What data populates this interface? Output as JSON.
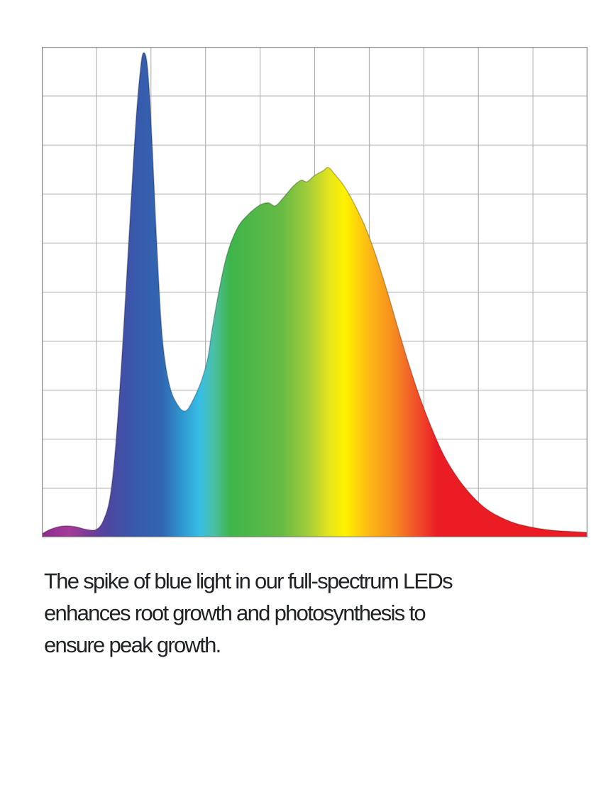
{
  "page": {
    "background": "#ffffff"
  },
  "colors": {
    "chart_background": "#ffffff",
    "chart_border": "#8B8B8B",
    "grid_line": "#A9A9A9",
    "caption_text": "#1F2125",
    "edge_shading": "rgba(0,0,0,0.25)"
  },
  "caption": {
    "lines": [
      "The spike of blue light in our full-spectrum LEDs",
      "enhances root growth and photosynthesis to",
      "ensure peak growth."
    ]
  },
  "chart_data": {
    "type": "area",
    "title": "",
    "xlabel": "",
    "ylabel": "",
    "x_axis": {
      "tick_labels": [],
      "range_percent": [
        0,
        100
      ]
    },
    "y_axis": {
      "tick_labels": [],
      "range_percent": [
        0,
        100
      ]
    },
    "grid": {
      "cols": 10,
      "rows": 10,
      "visible": true
    },
    "legend": {
      "visible": false
    },
    "features": {
      "blue_spike_peak": {
        "x_percent": 18.7,
        "intensity_percent": 98.8
      },
      "valley": {
        "x_percent": 26.4,
        "intensity_percent": 25.8
      },
      "broad_peak": {
        "x_percent": 52.5,
        "intensity_percent": 75.4
      },
      "left_tail_bump": {
        "x_percent": 3.8,
        "intensity_percent": 2.3
      }
    },
    "series": [
      {
        "name": "full-spectrum-led-output",
        "points": [
          [
            0.0,
            0.7
          ],
          [
            1.7,
            1.7
          ],
          [
            3.8,
            2.3
          ],
          [
            6.0,
            2.2
          ],
          [
            8.2,
            1.6
          ],
          [
            10.0,
            1.6
          ],
          [
            11.3,
            3.5
          ],
          [
            12.5,
            8.2
          ],
          [
            13.5,
            18.4
          ],
          [
            14.7,
            37.2
          ],
          [
            16.0,
            61.8
          ],
          [
            17.2,
            84.2
          ],
          [
            18.1,
            95.8
          ],
          [
            18.7,
            98.8
          ],
          [
            19.4,
            95.4
          ],
          [
            20.2,
            80.6
          ],
          [
            21.1,
            58.9
          ],
          [
            22.1,
            40.5
          ],
          [
            23.4,
            31.0
          ],
          [
            25.0,
            26.8
          ],
          [
            26.4,
            25.8
          ],
          [
            27.8,
            28.2
          ],
          [
            29.3,
            32.1
          ],
          [
            30.4,
            36.5
          ],
          [
            31.2,
            42.3
          ],
          [
            32.4,
            49.9
          ],
          [
            33.9,
            57.5
          ],
          [
            35.8,
            63.0
          ],
          [
            37.8,
            65.8
          ],
          [
            39.9,
            67.7
          ],
          [
            41.5,
            68.2
          ],
          [
            42.8,
            67.6
          ],
          [
            44.3,
            69.3
          ],
          [
            46.0,
            71.5
          ],
          [
            47.5,
            72.8
          ],
          [
            48.6,
            72.5
          ],
          [
            49.9,
            73.7
          ],
          [
            51.5,
            74.7
          ],
          [
            52.5,
            75.4
          ],
          [
            53.7,
            74.0
          ],
          [
            55.4,
            71.6
          ],
          [
            57.3,
            67.9
          ],
          [
            59.3,
            63.2
          ],
          [
            61.2,
            57.5
          ],
          [
            63.2,
            50.5
          ],
          [
            65.1,
            43.3
          ],
          [
            67.2,
            35.5
          ],
          [
            69.3,
            28.5
          ],
          [
            71.4,
            22.4
          ],
          [
            73.6,
            16.9
          ],
          [
            75.9,
            12.6
          ],
          [
            78.4,
            9.0
          ],
          [
            81.0,
            6.2
          ],
          [
            83.7,
            4.3
          ],
          [
            86.7,
            2.9
          ],
          [
            90.1,
            2.0
          ],
          [
            93.8,
            1.4
          ],
          [
            97.0,
            1.2
          ],
          [
            100.0,
            1.0
          ]
        ]
      }
    ],
    "gradient_stops": [
      {
        "offset": 0.0,
        "color": "#8E2A8C"
      },
      {
        "offset": 0.05,
        "color": "#A43C99"
      },
      {
        "offset": 0.085,
        "color": "#7A3B97"
      },
      {
        "offset": 0.12,
        "color": "#4E46A0"
      },
      {
        "offset": 0.165,
        "color": "#3A57AB"
      },
      {
        "offset": 0.22,
        "color": "#3066B2"
      },
      {
        "offset": 0.26,
        "color": "#2F9BD3"
      },
      {
        "offset": 0.29,
        "color": "#38BEE6"
      },
      {
        "offset": 0.315,
        "color": "#4BC0A6"
      },
      {
        "offset": 0.345,
        "color": "#3EB54A"
      },
      {
        "offset": 0.44,
        "color": "#67BA45"
      },
      {
        "offset": 0.49,
        "color": "#A6CE39"
      },
      {
        "offset": 0.525,
        "color": "#E3E41F"
      },
      {
        "offset": 0.555,
        "color": "#FFF200"
      },
      {
        "offset": 0.6,
        "color": "#FDB815"
      },
      {
        "offset": 0.645,
        "color": "#F68C1F"
      },
      {
        "offset": 0.68,
        "color": "#F15A29"
      },
      {
        "offset": 0.725,
        "color": "#EC1C24"
      },
      {
        "offset": 1.0,
        "color": "#EC1C24"
      }
    ]
  }
}
